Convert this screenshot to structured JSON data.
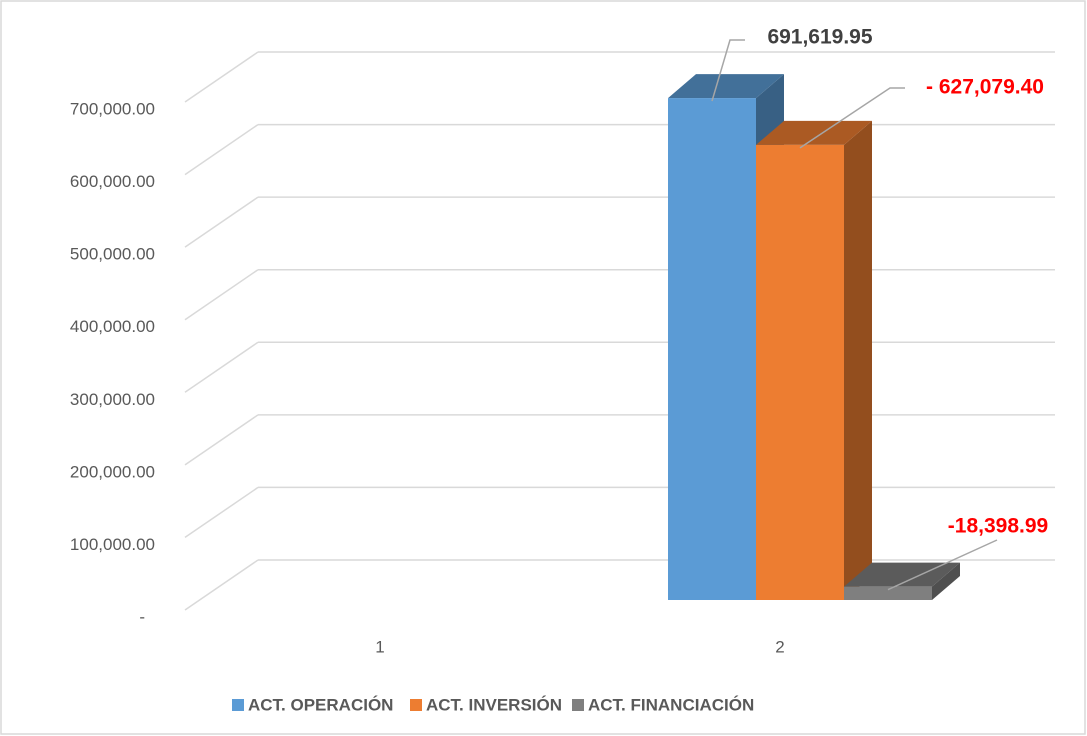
{
  "chart_data": {
    "type": "bar3d",
    "categories": [
      "1",
      "2"
    ],
    "series": [
      {
        "name": "ACT. OPERACIÓN",
        "color": "#5b9bd5",
        "label_color": "#404040",
        "values": [
          null,
          691619.95
        ],
        "value_labels": [
          null,
          "691,619.95"
        ]
      },
      {
        "name": "ACT. INVERSIÓN",
        "color": "#ed7d31",
        "label_color": "#ff0000",
        "values": [
          null,
          627079.4
        ],
        "value_labels": [
          null,
          "- 627,079.40"
        ]
      },
      {
        "name": "ACT. FINANCIACIÓN",
        "color": "#7f7f7f",
        "label_color": "#ff0000",
        "values": [
          null,
          18398.99
        ],
        "value_labels": [
          null,
          "-18,398.99"
        ]
      }
    ],
    "ylim": [
      0,
      700000
    ],
    "yticks": [
      {
        "value": 0,
        "label": "-"
      },
      {
        "value": 100000,
        "label": "100,000.00"
      },
      {
        "value": 200000,
        "label": "200,000.00"
      },
      {
        "value": 300000,
        "label": "300,000.00"
      },
      {
        "value": 400000,
        "label": "400,000.00"
      },
      {
        "value": 500000,
        "label": "500,000.00"
      },
      {
        "value": 600000,
        "label": "600,000.00"
      },
      {
        "value": 700000,
        "label": "700,000.00"
      }
    ],
    "grid": true,
    "legend": "bottom"
  }
}
